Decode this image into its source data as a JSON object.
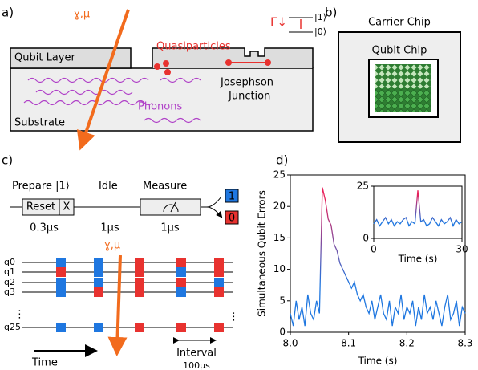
{
  "panel_a": {
    "label": "a)",
    "radiation": "ɣ,μ",
    "gamma": "Γ↓",
    "level_1": "|1⟩",
    "level_0": "|0⟩",
    "qubit_layer": "Qubit Layer",
    "quasiparticles": "Quasiparticles",
    "junction": [
      "Josephson",
      "Junction"
    ],
    "phonons": "Phonons",
    "substrate": "Substrate"
  },
  "panel_b": {
    "label": "b)",
    "carrier": "Carrier Chip",
    "qubit_chip": "Qubit Chip"
  },
  "panel_c": {
    "label": "c)",
    "prepare": "Prepare |1⟩",
    "idle": "Idle",
    "measure": "Measure",
    "reset": "Reset",
    "x_gate": "X",
    "out_1": "1",
    "out_0": "0",
    "t_prepare": "0.3μs",
    "t_idle": "1μs",
    "t_measure": "1μs",
    "radiation": "ɣ,μ",
    "qubits": [
      "q0",
      "q1",
      "q2",
      "q3",
      "q25"
    ],
    "outcomes": [
      [
        1,
        1,
        0,
        0,
        0
      ],
      [
        0,
        1,
        0,
        1,
        0
      ],
      [
        1,
        1,
        0,
        0,
        1
      ],
      [
        1,
        0,
        0,
        1,
        0
      ],
      [
        1,
        1,
        0,
        0,
        0
      ]
    ],
    "color_1": "#1f77e0",
    "color_0": "#e8322f",
    "time": "Time",
    "interval": "Interval",
    "interval_value": "100μs"
  },
  "chart_data": [
    {
      "type": "line",
      "panel_label": "d)",
      "xlabel": "Time (s)",
      "ylabel": "Simultaneous Qubit Errors",
      "x": [
        8.0,
        8.005,
        8.01,
        8.015,
        8.02,
        8.025,
        8.03,
        8.035,
        8.04,
        8.045,
        8.05,
        8.055,
        8.06,
        8.065,
        8.07,
        8.075,
        8.08,
        8.085,
        8.09,
        8.095,
        8.1,
        8.105,
        8.11,
        8.115,
        8.12,
        8.125,
        8.13,
        8.135,
        8.14,
        8.145,
        8.15,
        8.155,
        8.16,
        8.165,
        8.17,
        8.175,
        8.18,
        8.185,
        8.19,
        8.195,
        8.2,
        8.205,
        8.21,
        8.215,
        8.22,
        8.225,
        8.23,
        8.235,
        8.24,
        8.245,
        8.25,
        8.255,
        8.26,
        8.265,
        8.27,
        8.275,
        8.28,
        8.285,
        8.29,
        8.295,
        8.3
      ],
      "series": [
        {
          "values": [
            3,
            1,
            5,
            2,
            4,
            1,
            6,
            3,
            2,
            5,
            3,
            23,
            21,
            18,
            17,
            14,
            13,
            11,
            10,
            9,
            8,
            7,
            8,
            6,
            5,
            6,
            4,
            3,
            5,
            2,
            4,
            6,
            3,
            2,
            5,
            1,
            4,
            3,
            6,
            2,
            4,
            3,
            5,
            1,
            4,
            2,
            6,
            3,
            4,
            2,
            5,
            3,
            1,
            4,
            6,
            2,
            3,
            5,
            1,
            4,
            3
          ]
        }
      ],
      "color_low": "#1f77e0",
      "color_high": "#e8205a",
      "xlim": [
        8.0,
        8.3
      ],
      "xticks": [
        {
          "value": 8.0,
          "label": "8.0"
        },
        8.1,
        8.2,
        8.3
      ],
      "ylim": [
        0,
        25
      ],
      "yticks": [
        0,
        5,
        10,
        15,
        20,
        25
      ]
    },
    {
      "type": "line",
      "xlabel": "Time (s)",
      "x": [
        0,
        1,
        2,
        3,
        4,
        5,
        6,
        7,
        8,
        9,
        10,
        11,
        12,
        13,
        14,
        15,
        16,
        17,
        18,
        19,
        20,
        21,
        22,
        23,
        24,
        25,
        26,
        27,
        28,
        29,
        30
      ],
      "series": [
        {
          "values": [
            7,
            9,
            6,
            8,
            10,
            7,
            9,
            6,
            8,
            7,
            9,
            10,
            6,
            8,
            7,
            23,
            8,
            9,
            6,
            7,
            10,
            8,
            6,
            9,
            7,
            8,
            10,
            6,
            9,
            7,
            8
          ]
        }
      ],
      "color_low": "#1f77e0",
      "color_high": "#e8205a",
      "xlim": [
        0,
        30
      ],
      "xticks": [
        0,
        30
      ],
      "ylim": [
        0,
        25
      ],
      "yticks": [
        0,
        25
      ]
    }
  ]
}
